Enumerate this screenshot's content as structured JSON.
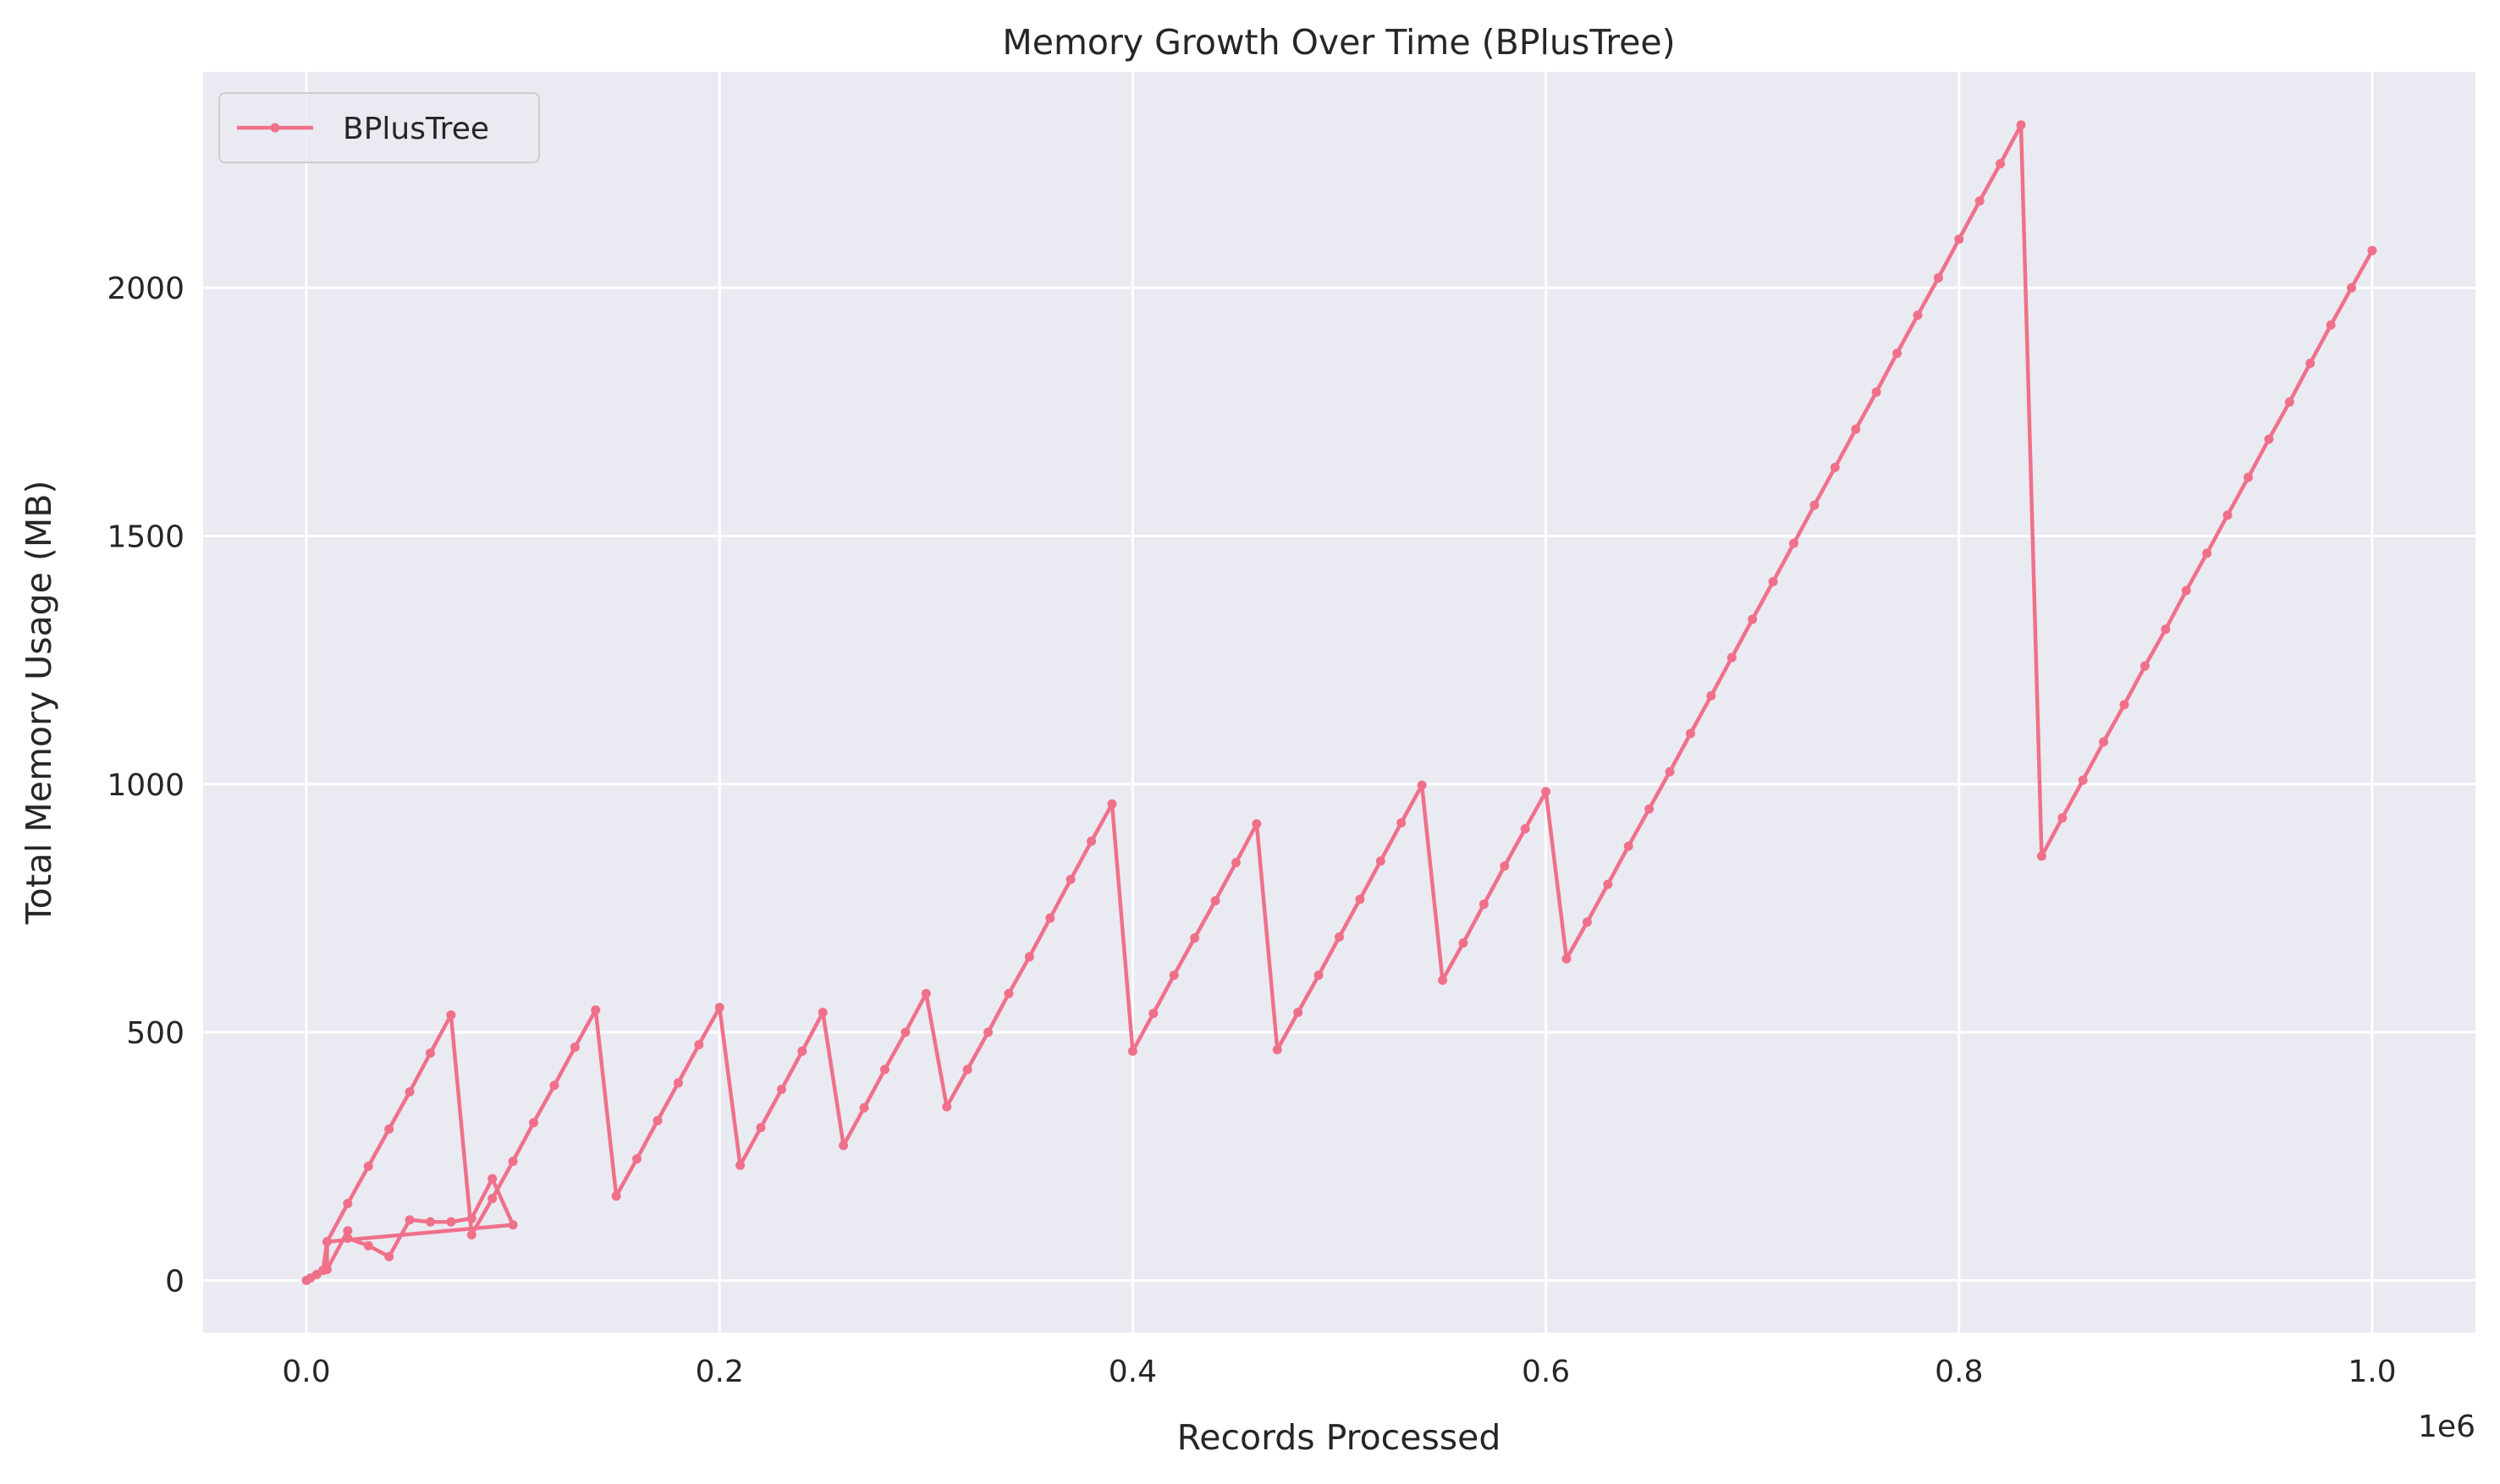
{
  "chart_data": {
    "type": "line",
    "title": "Memory Growth Over Time (BPlusTree)",
    "xlabel": "Records Processed",
    "ylabel": "Total Memory Usage (MB)",
    "x_offset_text": "1e6",
    "xlim": [
      -0.05,
      1.05
    ],
    "ylim": [
      -105,
      2435
    ],
    "x_ticks": [
      0.0,
      0.2,
      0.4,
      0.6,
      0.8,
      1.0
    ],
    "x_tick_labels": [
      "0.0",
      "0.2",
      "0.4",
      "0.6",
      "0.8",
      "1.0"
    ],
    "y_ticks": [
      0,
      500,
      1000,
      1500,
      2000
    ],
    "y_tick_labels": [
      "0",
      "500",
      "1000",
      "1500",
      "2000"
    ],
    "grid": true,
    "legend_position": "top-left",
    "background_color": "#eaeaf2",
    "series": [
      {
        "name": "BPlusTree",
        "color": "#f0708a",
        "marker": "circle",
        "points": [
          [
            0.0,
            0
          ],
          [
            0.002,
            5
          ],
          [
            0.005,
            12
          ],
          [
            0.008,
            20
          ],
          [
            0.01,
            78
          ],
          [
            0.01,
            22
          ],
          [
            0.02,
            100
          ],
          [
            0.02,
            85
          ],
          [
            0.03,
            70
          ],
          [
            0.04,
            48
          ],
          [
            0.05,
            122
          ],
          [
            0.06,
            118
          ],
          [
            0.07,
            118
          ],
          [
            0.08,
            125
          ],
          [
            0.09,
            205
          ],
          [
            0.1,
            112
          ],
          [
            0.01,
            78
          ],
          [
            0.02,
            155
          ],
          [
            0.03,
            230
          ],
          [
            0.04,
            305
          ],
          [
            0.05,
            380
          ],
          [
            0.06,
            458
          ],
          [
            0.07,
            535
          ],
          [
            0.08,
            92
          ],
          [
            0.09,
            165
          ],
          [
            0.1,
            240
          ],
          [
            0.11,
            318
          ],
          [
            0.12,
            393
          ],
          [
            0.13,
            470
          ],
          [
            0.14,
            545
          ],
          [
            0.15,
            170
          ],
          [
            0.16,
            245
          ],
          [
            0.17,
            322
          ],
          [
            0.18,
            398
          ],
          [
            0.19,
            475
          ],
          [
            0.2,
            550
          ],
          [
            0.21,
            232
          ],
          [
            0.22,
            308
          ],
          [
            0.23,
            385
          ],
          [
            0.24,
            462
          ],
          [
            0.25,
            540
          ],
          [
            0.26,
            272
          ],
          [
            0.27,
            348
          ],
          [
            0.28,
            425
          ],
          [
            0.29,
            500
          ],
          [
            0.3,
            578
          ],
          [
            0.31,
            350
          ],
          [
            0.32,
            425
          ],
          [
            0.33,
            500
          ],
          [
            0.34,
            578
          ],
          [
            0.35,
            652
          ],
          [
            0.36,
            730
          ],
          [
            0.37,
            808
          ],
          [
            0.38,
            885
          ],
          [
            0.39,
            960
          ],
          [
            0.4,
            462
          ],
          [
            0.41,
            538
          ],
          [
            0.42,
            615
          ],
          [
            0.43,
            690
          ],
          [
            0.44,
            765
          ],
          [
            0.45,
            842
          ],
          [
            0.46,
            920
          ],
          [
            0.47,
            465
          ],
          [
            0.48,
            540
          ],
          [
            0.49,
            615
          ],
          [
            0.5,
            692
          ],
          [
            0.51,
            768
          ],
          [
            0.52,
            845
          ],
          [
            0.53,
            922
          ],
          [
            0.54,
            998
          ],
          [
            0.55,
            605
          ],
          [
            0.56,
            680
          ],
          [
            0.57,
            758
          ],
          [
            0.58,
            835
          ],
          [
            0.59,
            910
          ],
          [
            0.6,
            985
          ],
          [
            0.61,
            648
          ],
          [
            0.62,
            722
          ],
          [
            0.63,
            798
          ],
          [
            0.64,
            875
          ],
          [
            0.65,
            950
          ],
          [
            0.66,
            1025
          ],
          [
            0.67,
            1102
          ],
          [
            0.68,
            1178
          ],
          [
            0.69,
            1255
          ],
          [
            0.7,
            1332
          ],
          [
            0.71,
            1408
          ],
          [
            0.72,
            1485
          ],
          [
            0.73,
            1562
          ],
          [
            0.74,
            1638
          ],
          [
            0.75,
            1715
          ],
          [
            0.76,
            1790
          ],
          [
            0.77,
            1868
          ],
          [
            0.78,
            1945
          ],
          [
            0.79,
            2020
          ],
          [
            0.8,
            2098
          ],
          [
            0.81,
            2175
          ],
          [
            0.82,
            2250
          ],
          [
            0.83,
            2328
          ],
          [
            0.84,
            855
          ],
          [
            0.85,
            932
          ],
          [
            0.86,
            1008
          ],
          [
            0.87,
            1085
          ],
          [
            0.88,
            1160
          ],
          [
            0.89,
            1238
          ],
          [
            0.9,
            1312
          ],
          [
            0.91,
            1390
          ],
          [
            0.92,
            1465
          ],
          [
            0.93,
            1542
          ],
          [
            0.94,
            1618
          ],
          [
            0.95,
            1695
          ],
          [
            0.96,
            1770
          ],
          [
            0.97,
            1848
          ],
          [
            0.98,
            1925
          ],
          [
            0.99,
            2000
          ],
          [
            1.0,
            2075
          ]
        ]
      }
    ]
  }
}
